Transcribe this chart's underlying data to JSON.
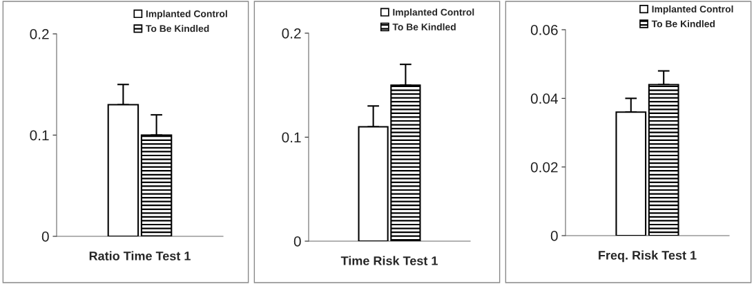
{
  "chart_data": [
    {
      "type": "bar",
      "xlabel": "Ratio Time Test 1",
      "categories": [
        null
      ],
      "ylim": [
        0,
        0.2
      ],
      "yticks": [
        0,
        0.1,
        0.2
      ],
      "legend": "top right",
      "grid": false,
      "series": [
        {
          "name": "Implanted Control",
          "color": "#ffffff",
          "values": [
            0.13
          ],
          "errors": [
            [
              0.13,
              0.15
            ]
          ]
        },
        {
          "name": "To Be Kindled",
          "color": "#000000",
          "values": [
            0.1
          ],
          "errors": [
            [
              0.1,
              0.12
            ]
          ]
        }
      ]
    },
    {
      "type": "bar",
      "xlabel": "Time Risk Test 1",
      "categories": [
        null
      ],
      "ylim": [
        0,
        0.2
      ],
      "yticks": [
        0,
        0.1,
        0.2
      ],
      "legend": "top right",
      "grid": false,
      "series": [
        {
          "name": "Implanted Control",
          "color": "#ffffff",
          "values": [
            0.11
          ],
          "errors": [
            [
              0.11,
              0.13
            ]
          ]
        },
        {
          "name": "To Be Kindled",
          "color": "#000000",
          "values": [
            0.15
          ],
          "errors": [
            [
              0.15,
              0.17
            ]
          ]
        }
      ]
    },
    {
      "type": "bar",
      "xlabel": "Freq. Risk Test 1",
      "categories": [
        null
      ],
      "ylim": [
        0,
        0.06
      ],
      "yticks": [
        0,
        0.02,
        0.04,
        0.06
      ],
      "legend": "top right",
      "grid": false,
      "series": [
        {
          "name": "Implanted Control",
          "color": "#ffffff",
          "values": [
            0.036
          ],
          "errors": [
            [
              0.036,
              0.04
            ]
          ]
        },
        {
          "name": "To Be Kindled",
          "color": "#000000",
          "values": [
            0.044
          ],
          "errors": [
            [
              0.044,
              0.048
            ]
          ]
        }
      ]
    }
  ]
}
